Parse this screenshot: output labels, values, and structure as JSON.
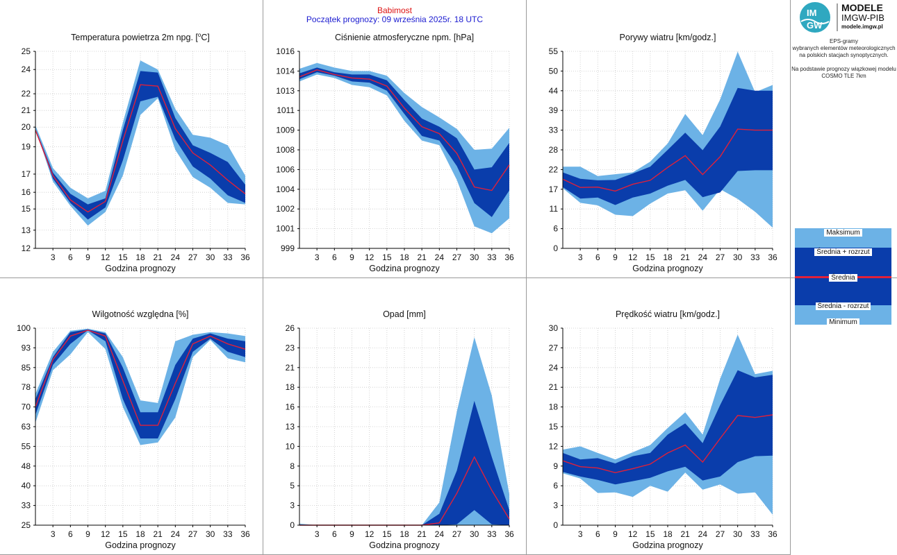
{
  "header": {
    "station": "Babimost",
    "forecast_start": "Początek prognozy: 09 września 2025r. 18 UTC"
  },
  "logo": {
    "mark_top": "IM",
    "mark_bottom": "GW",
    "name": "MODELE",
    "org": "IMGW-PIB",
    "url": "modele.imgw.pl"
  },
  "info": {
    "lines": [
      "EPS-gramy",
      "wybranych elementów meteorologicznych",
      "na polskich stacjach  synoptycznych.",
      "",
      "Na podstawie prognozy wiązkowej modelu",
      "COSMO TLE 7km"
    ]
  },
  "legend": {
    "max": "Maksimum",
    "mean_plus": "Średnia + rozrzut",
    "mean": "Średnia",
    "mean_minus": "Średnia - rozrzut",
    "min": "Minimum"
  },
  "colors": {
    "light": "#6cb2e6",
    "dark": "#0a3dab",
    "mean": "#e0203a",
    "grid": "#c8c8c8"
  },
  "chart_data": [
    {
      "type": "area",
      "title": "Temperatura powietrza 2m npg. [°C]",
      "title_parts": [
        "Temperatura powietrza 2m npg. [",
        "o",
        "C]"
      ],
      "xlabel": "Godzina prognozy",
      "x": [
        0,
        3,
        6,
        9,
        12,
        15,
        18,
        21,
        24,
        27,
        30,
        33,
        36
      ],
      "xticks": [
        3,
        6,
        9,
        12,
        15,
        18,
        21,
        24,
        27,
        30,
        33,
        36
      ],
      "ylim": [
        12,
        25
      ],
      "yticks": [
        12,
        13,
        15,
        16,
        17,
        19,
        20,
        21,
        22,
        24,
        25
      ],
      "ytick_values": [
        12,
        13.2,
        14.6,
        15.7,
        16.9,
        18.7,
        20,
        21.1,
        22.2,
        23.8,
        25
      ],
      "series": [
        {
          "role": "min",
          "values": [
            19.9,
            16.4,
            14.8,
            13.5,
            14.4,
            16.8,
            20.8,
            21.9,
            18.5,
            16.7,
            16.0,
            15.0,
            14.9
          ]
        },
        {
          "role": "mean_minus",
          "values": [
            19.9,
            16.6,
            15.0,
            13.9,
            14.7,
            17.8,
            21.7,
            22.0,
            19.2,
            17.4,
            16.6,
            15.5,
            15.0
          ]
        },
        {
          "role": "mean",
          "values": [
            19.8,
            16.8,
            15.2,
            14.4,
            15.1,
            19.1,
            22.8,
            22.7,
            19.9,
            18.3,
            17.5,
            16.5,
            15.6
          ]
        },
        {
          "role": "mean_plus",
          "values": [
            19.9,
            17.0,
            15.6,
            14.9,
            15.3,
            19.8,
            23.7,
            23.6,
            20.6,
            18.8,
            18.3,
            17.7,
            16.2
          ]
        },
        {
          "role": "max",
          "values": [
            20.1,
            17.3,
            16.0,
            15.3,
            15.8,
            20.3,
            24.4,
            23.8,
            21.2,
            19.5,
            19.3,
            18.8,
            16.8
          ]
        }
      ]
    },
    {
      "type": "area",
      "title": "Ciśnienie atmosferyczne npm. [hPa]",
      "xlabel": "Godzina prognozy",
      "x": [
        0,
        3,
        6,
        9,
        12,
        15,
        18,
        21,
        24,
        27,
        30,
        33,
        36
      ],
      "xticks": [
        3,
        6,
        9,
        12,
        15,
        18,
        21,
        24,
        27,
        30,
        33,
        36
      ],
      "ylim": [
        999,
        1016
      ],
      "yticks": [
        999,
        1001,
        1002,
        1004,
        1006,
        1008,
        1009,
        1011,
        1013,
        1014,
        1016
      ],
      "ytick_values": [
        999,
        1000.7,
        1002.4,
        1004.1,
        1005.8,
        1007.5,
        1009.2,
        1010.9,
        1012.6,
        1014.3,
        1016
      ],
      "series": [
        {
          "role": "min",
          "values": [
            1013.4,
            1014.0,
            1013.7,
            1013.1,
            1012.9,
            1012.2,
            1010.0,
            1008.3,
            1007.9,
            1004.9,
            1000.9,
            1000.3,
            1001.6
          ]
        },
        {
          "role": "mean_minus",
          "values": [
            1013.6,
            1014.2,
            1013.9,
            1013.4,
            1013.3,
            1012.6,
            1010.6,
            1008.7,
            1008.3,
            1006.1,
            1002.9,
            1001.7,
            1004.0
          ]
        },
        {
          "role": "mean",
          "values": [
            1013.8,
            1014.4,
            1014.0,
            1013.7,
            1013.6,
            1013.0,
            1011.1,
            1009.5,
            1008.9,
            1007.2,
            1004.3,
            1004.0,
            1006.2
          ]
        },
        {
          "role": "mean_plus",
          "values": [
            1014.1,
            1014.6,
            1014.2,
            1014.0,
            1014.0,
            1013.5,
            1011.8,
            1010.2,
            1009.5,
            1008.5,
            1005.8,
            1006.0,
            1008.1
          ]
        },
        {
          "role": "max",
          "values": [
            1014.5,
            1015.0,
            1014.6,
            1014.3,
            1014.3,
            1013.9,
            1012.4,
            1011.2,
            1010.3,
            1009.3,
            1007.5,
            1007.6,
            1009.4
          ]
        }
      ]
    },
    {
      "type": "area",
      "title": "Porywy wiatru [km/godz.]",
      "xlabel": "Godzina prognozy",
      "x": [
        0,
        3,
        6,
        9,
        12,
        15,
        18,
        21,
        24,
        27,
        30,
        33,
        36
      ],
      "xticks": [
        3,
        6,
        9,
        12,
        15,
        18,
        21,
        24,
        27,
        30,
        33,
        36
      ],
      "ylim": [
        0,
        55
      ],
      "yticks": [
        0,
        6,
        11,
        17,
        22,
        28,
        33,
        39,
        44,
        50,
        55
      ],
      "ytick_values": [
        0,
        5.5,
        11,
        16.5,
        22,
        27.5,
        33,
        38.5,
        44,
        49.5,
        55
      ],
      "series": [
        {
          "role": "min",
          "values": [
            16.8,
            12.7,
            12.0,
            9.4,
            9.0,
            12.5,
            15.3,
            16.2,
            10.5,
            16.5,
            13.8,
            10.2,
            5.8
          ]
        },
        {
          "role": "mean_minus",
          "values": [
            17.1,
            13.9,
            14.2,
            12.1,
            14.2,
            15.3,
            17.5,
            19.1,
            14.3,
            15.6,
            21.6,
            21.8,
            21.8
          ]
        },
        {
          "role": "mean",
          "values": [
            19.3,
            17.0,
            17.1,
            16.0,
            17.9,
            19.0,
            22.6,
            25.9,
            20.6,
            25.6,
            33.3,
            33.0,
            33.0
          ]
        },
        {
          "role": "mean_plus",
          "values": [
            21.2,
            19.4,
            19.0,
            19.1,
            20.9,
            22.8,
            27.5,
            32.3,
            27.4,
            34.0,
            44.8,
            44.0,
            44.0
          ]
        },
        {
          "role": "max",
          "values": [
            22.8,
            22.8,
            20.2,
            20.7,
            21.2,
            24.2,
            29.3,
            37.5,
            31.6,
            41.6,
            54.9,
            43.6,
            45.6
          ]
        }
      ]
    },
    {
      "type": "area",
      "title": "Wilgotność względna [%]",
      "xlabel": "Godzina prognozy",
      "x": [
        0,
        3,
        6,
        9,
        12,
        15,
        18,
        21,
        24,
        27,
        30,
        33,
        36
      ],
      "xticks": [
        3,
        6,
        9,
        12,
        15,
        18,
        21,
        24,
        27,
        30,
        33,
        36
      ],
      "ylim": [
        25,
        100
      ],
      "yticks": [
        25,
        33,
        40,
        48,
        55,
        63,
        70,
        78,
        85,
        93,
        100
      ],
      "ytick_values": [
        25,
        32.5,
        40,
        47.5,
        55,
        62.5,
        70,
        77.5,
        85,
        92.5,
        100
      ],
      "series": [
        {
          "role": "min",
          "values": [
            64,
            84,
            90,
            98.5,
            92,
            70,
            55.5,
            56.5,
            66,
            89,
            95.5,
            88.5,
            87
          ]
        },
        {
          "role": "mean_minus",
          "values": [
            67,
            86,
            94,
            99.2,
            95,
            73,
            58,
            58,
            73,
            91,
            96,
            91,
            89
          ]
        },
        {
          "role": "mean",
          "values": [
            70,
            88,
            97,
            99.2,
            97,
            80,
            63,
            63,
            79,
            94,
            97,
            94,
            92
          ]
        },
        {
          "role": "mean_plus",
          "values": [
            73,
            89,
            98.5,
            99.5,
            98,
            85,
            68,
            68,
            86,
            96,
            98,
            96,
            95
          ]
        },
        {
          "role": "max",
          "values": [
            75,
            91,
            99,
            99.8,
            98.5,
            89,
            72.5,
            71.5,
            95,
            97.5,
            98.5,
            98,
            97
          ]
        }
      ]
    },
    {
      "type": "area",
      "title": "Opad [mm]",
      "xlabel": "Godzina prognozy",
      "x": [
        0,
        3,
        6,
        9,
        12,
        15,
        18,
        21,
        24,
        27,
        30,
        33,
        36
      ],
      "xticks": [
        3,
        6,
        9,
        12,
        15,
        18,
        21,
        24,
        27,
        30,
        33,
        36
      ],
      "ylim": [
        0,
        26
      ],
      "yticks": [
        0,
        3,
        5,
        8,
        10,
        13,
        16,
        18,
        21,
        23,
        26
      ],
      "ytick_values": [
        0,
        2.6,
        5.2,
        7.8,
        10.4,
        13,
        15.6,
        18.2,
        20.8,
        23.4,
        26
      ],
      "series": [
        {
          "role": "min",
          "values": [
            0,
            0,
            0,
            0,
            0,
            0,
            0,
            0,
            0,
            0,
            0,
            0,
            0
          ]
        },
        {
          "role": "mean_minus",
          "values": [
            0,
            0,
            0,
            0,
            0,
            0,
            0,
            0,
            0,
            0.1,
            2.0,
            0.1,
            0
          ]
        },
        {
          "role": "mean",
          "values": [
            0,
            0,
            0,
            0,
            0,
            0,
            0,
            0,
            0.3,
            4.2,
            9.0,
            4.6,
            0.8
          ]
        },
        {
          "role": "mean_plus",
          "values": [
            0,
            0,
            0,
            0,
            0,
            0,
            0,
            0,
            1.5,
            7.2,
            16.4,
            9.0,
            2.0
          ]
        },
        {
          "role": "max",
          "values": [
            0.2,
            0,
            0,
            0,
            0,
            0,
            0,
            0,
            3.0,
            15.0,
            24.8,
            17.1,
            4.1
          ]
        }
      ]
    },
    {
      "type": "area",
      "title": "Prędkość wiatru [km/godz.]",
      "xlabel": "Godzina prognozy",
      "x": [
        0,
        3,
        6,
        9,
        12,
        15,
        18,
        21,
        24,
        27,
        30,
        33,
        36
      ],
      "xticks": [
        3,
        6,
        9,
        12,
        15,
        18,
        21,
        24,
        27,
        30,
        33,
        36
      ],
      "ylim": [
        0,
        30
      ],
      "yticks": [
        0,
        3,
        6,
        9,
        12,
        15,
        18,
        21,
        24,
        27,
        30
      ],
      "ytick_values": [
        0,
        3,
        6,
        9,
        12,
        15,
        18,
        21,
        24,
        27,
        30
      ],
      "series": [
        {
          "role": "min",
          "values": [
            7.9,
            7.1,
            4.9,
            5.0,
            4.3,
            6.0,
            5.1,
            8.0,
            5.4,
            6.2,
            4.8,
            5.0,
            1.6
          ]
        },
        {
          "role": "mean_minus",
          "values": [
            8.1,
            7.4,
            6.9,
            6.2,
            6.7,
            7.2,
            8.2,
            8.9,
            6.8,
            7.4,
            9.6,
            10.5,
            10.6
          ]
        },
        {
          "role": "mean",
          "values": [
            9.8,
            8.9,
            8.7,
            8.0,
            8.6,
            9.3,
            11.0,
            12.2,
            9.6,
            13.2,
            16.7,
            16.4,
            16.8
          ]
        },
        {
          "role": "mean_plus",
          "values": [
            11.0,
            10.0,
            10.2,
            9.4,
            10.5,
            11.0,
            13.8,
            15.5,
            12.5,
            18.3,
            23.6,
            22.5,
            22.9
          ]
        },
        {
          "role": "max",
          "values": [
            11.5,
            12.0,
            11.0,
            10.0,
            11.1,
            12.2,
            14.8,
            17.2,
            13.8,
            22.3,
            29.0,
            23.0,
            23.5
          ]
        }
      ]
    }
  ]
}
